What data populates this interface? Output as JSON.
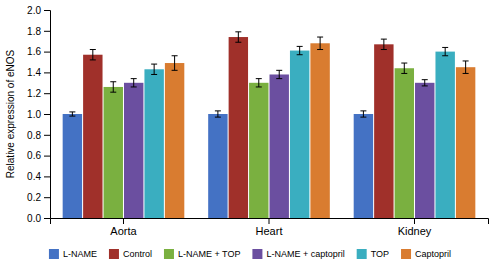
{
  "chart_data": {
    "type": "bar",
    "categories": [
      "Aorta",
      "Heart",
      "Kidney"
    ],
    "series": [
      {
        "name": "L-NAME",
        "color": "#4472c4",
        "values": [
          1.0,
          1.0,
          1.0
        ],
        "errors": [
          0.02,
          0.03,
          0.03
        ]
      },
      {
        "name": "Control",
        "color": "#a0302a",
        "values": [
          1.57,
          1.74,
          1.67
        ],
        "errors": [
          0.05,
          0.05,
          0.05
        ]
      },
      {
        "name": "L-NAME + TOP",
        "color": "#7ab040",
        "values": [
          1.26,
          1.3,
          1.44
        ],
        "errors": [
          0.05,
          0.04,
          0.05
        ]
      },
      {
        "name": "L-NAME + captopril",
        "color": "#6b4fa0",
        "values": [
          1.3,
          1.38,
          1.3
        ],
        "errors": [
          0.04,
          0.04,
          0.03
        ]
      },
      {
        "name": "TOP",
        "color": "#3aaec0",
        "values": [
          1.43,
          1.61,
          1.6
        ],
        "errors": [
          0.05,
          0.04,
          0.04
        ]
      },
      {
        "name": "Captopril",
        "color": "#d97c30",
        "values": [
          1.49,
          1.68,
          1.45
        ],
        "errors": [
          0.07,
          0.06,
          0.06
        ]
      }
    ],
    "ylabel": "Relative expression of eNOS",
    "ylim": [
      0.0,
      2.0
    ],
    "yticks": [
      {
        "value": 0.0,
        "label": "0.0"
      },
      0.2,
      0.4,
      0.6,
      0.8,
      {
        "value": 1.0,
        "label": "1.0"
      },
      1.2,
      1.4,
      1.6,
      1.8,
      {
        "value": 2.0,
        "label": "2.0"
      }
    ],
    "legend": "bottom",
    "grid": false
  }
}
